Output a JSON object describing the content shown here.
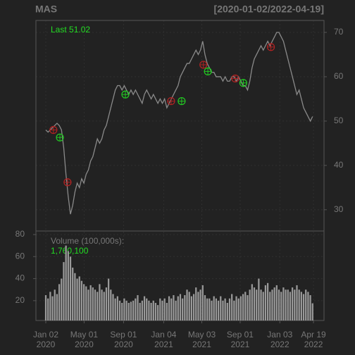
{
  "chart_data": {
    "type": "financial",
    "title": "MAS",
    "date_range": "[2020-01-02/2022-04-19]",
    "last_label": "Last 51.02",
    "volume_label": "Volume (100,000s):",
    "volume_last_label": "1,760,100",
    "x": [
      0,
      1,
      2,
      3,
      4,
      5,
      6,
      7,
      8,
      9,
      10,
      11,
      12,
      13,
      14,
      15,
      16,
      17,
      18,
      19,
      20,
      21,
      22,
      23,
      24,
      25,
      26,
      27,
      28,
      29,
      30,
      31,
      32,
      33,
      34,
      35,
      36,
      37,
      38,
      39,
      40,
      41,
      42,
      43,
      44,
      45,
      46,
      47,
      48,
      49,
      50,
      51,
      52,
      53,
      54,
      55,
      56,
      57,
      58,
      59,
      60,
      61,
      62,
      63,
      64,
      65,
      66,
      67,
      68,
      69,
      70,
      71,
      72,
      73,
      74,
      75,
      76,
      77,
      78,
      79,
      80,
      81,
      82,
      83,
      84,
      85,
      86,
      87,
      88,
      89,
      90,
      91,
      92,
      93,
      94,
      95,
      96,
      97,
      98,
      99,
      100,
      101,
      102,
      103,
      104,
      105,
      106,
      107,
      108,
      109,
      110,
      111,
      112,
      113,
      114,
      115,
      116,
      117,
      118,
      119
    ],
    "xlim": [
      -4.4,
      124.1
    ],
    "xticks": [
      {
        "value": 0,
        "label": "Jan 02",
        "year": "2020"
      },
      {
        "value": 17.1,
        "label": "May 01",
        "year": "2020"
      },
      {
        "value": 34.7,
        "label": "Sep 01",
        "year": "2020"
      },
      {
        "value": 52.6,
        "label": "Jan 04",
        "year": "2021"
      },
      {
        "value": 69.6,
        "label": "May 03",
        "year": "2021"
      },
      {
        "value": 86.7,
        "label": "Sep 01",
        "year": "2021"
      },
      {
        "value": 104.4,
        "label": "Jan 03",
        "year": "2022"
      },
      {
        "value": 119.4,
        "label": "Apr 19",
        "year": "2022"
      }
    ],
    "ylim": [
      25.2,
      72.7
    ],
    "yticks": [
      30,
      40,
      50,
      60,
      70
    ],
    "y2lim": [
      2,
      83.2
    ],
    "y2ticks": [
      20,
      40,
      60,
      80
    ],
    "grid": true,
    "series": [
      {
        "color": "#8a8a8a",
        "values": [
          48,
          47.5,
          48,
          48.5,
          49,
          49.5,
          49,
          48,
          44,
          38,
          33,
          29,
          31,
          34,
          36,
          35,
          37,
          36,
          38,
          39,
          41,
          42,
          44,
          46,
          45,
          46,
          48,
          49,
          51,
          53,
          55,
          57,
          58,
          58,
          57,
          58,
          57,
          56,
          57,
          56,
          57,
          56,
          55,
          54,
          56,
          57,
          56,
          55,
          56,
          55,
          54,
          55,
          54,
          55,
          53,
          54,
          55,
          56,
          57,
          58,
          60,
          61,
          62,
          63,
          63,
          64,
          65,
          66,
          65,
          66,
          68,
          65,
          63,
          62,
          61,
          61,
          60,
          60,
          60,
          59,
          60,
          59,
          59,
          60,
          60,
          59,
          60,
          59,
          58,
          58,
          57,
          59,
          62,
          64,
          65,
          66,
          67,
          66,
          67,
          68,
          67,
          68,
          69,
          70,
          70,
          69,
          68,
          66,
          64,
          62,
          60,
          58,
          56,
          57,
          55,
          53,
          52,
          51,
          50,
          51.02
        ]
      },
      {
        "axis": "y2",
        "color": "#9a9a9a",
        "values": [
          25,
          22,
          28,
          24,
          30,
          26,
          35,
          40,
          55,
          70,
          65,
          60,
          50,
          45,
          40,
          42,
          38,
          35,
          33,
          30,
          34,
          32,
          30,
          28,
          35,
          30,
          28,
          32,
          40,
          30,
          26,
          22,
          24,
          20,
          18,
          22,
          20,
          18,
          19,
          20,
          22,
          25,
          18,
          20,
          24,
          22,
          20,
          18,
          20,
          18,
          16,
          22,
          20,
          22,
          18,
          24,
          22,
          25,
          20,
          24,
          26,
          22,
          25,
          30,
          28,
          24,
          26,
          32,
          28,
          30,
          34,
          25,
          22,
          22,
          20,
          24,
          22,
          20,
          24,
          20,
          22,
          18,
          22,
          26,
          20,
          24,
          22,
          24,
          26,
          28,
          25,
          30,
          35,
          32,
          30,
          40,
          30,
          28,
          34,
          36,
          28,
          30,
          32,
          34,
          30,
          28,
          32,
          30,
          30,
          28,
          32,
          30,
          34,
          30,
          28,
          26,
          30,
          28,
          25,
          17.601
        ]
      }
    ],
    "sell_signals": {
      "color": "#b22222",
      "x": [
        3.4,
        9.7,
        55.9,
        70.3,
        84.5,
        100.4
      ],
      "values": [
        48,
        36.2,
        54.5,
        62.7,
        59.6,
        66.7
      ]
    },
    "buy_signals": {
      "color": "#22cc22",
      "x": [
        6.3,
        35.5,
        60.6,
        72.3,
        88.1
      ],
      "values": [
        46.3,
        56,
        54.5,
        61.2,
        58.6
      ]
    }
  }
}
